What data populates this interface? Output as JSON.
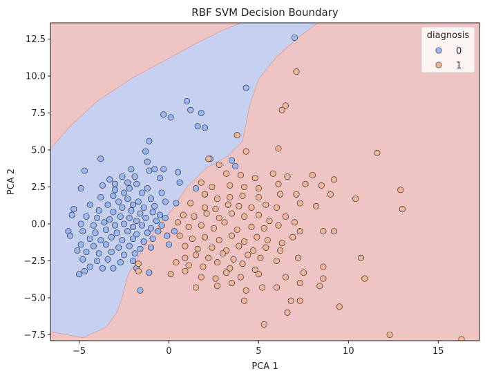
{
  "chart_data": {
    "type": "scatter",
    "title": "RBF SVM Decision Boundary",
    "xlabel": "PCA 1",
    "ylabel": "PCA 2",
    "xlim": [
      -6.6,
      17.3
    ],
    "ylim": [
      -7.9,
      13.6
    ],
    "x_ticks": [
      -5,
      0,
      5,
      10,
      15
    ],
    "x_tick_labels": [
      "−5",
      "0",
      "5",
      "10",
      "15"
    ],
    "y_ticks": [
      -7.5,
      -5.0,
      -2.5,
      0.0,
      2.5,
      5.0,
      7.5,
      10.0,
      12.5
    ],
    "y_tick_labels": [
      "−7.5",
      "−5.0",
      "−2.5",
      "0.0",
      "2.5",
      "5.0",
      "7.5",
      "10.0",
      "12.5"
    ],
    "grid": false,
    "legend": {
      "title": "diagnosis",
      "placement": "top-right",
      "entries": [
        "0",
        "1"
      ]
    },
    "colors": {
      "region_0": "#c6d1f2",
      "region_1": "#efc5c4",
      "point_0": "#9ab8f7",
      "point_1": "#f4b497",
      "point_edge": "#333333",
      "boundary": "#d99a9a"
    },
    "decision_region_0_polygon": [
      [
        -6.6,
        5.1
      ],
      [
        -5.5,
        6.6
      ],
      [
        -4.0,
        8.3
      ],
      [
        -2.0,
        9.9
      ],
      [
        0.0,
        11.2
      ],
      [
        1.5,
        12.2
      ],
      [
        3.0,
        13.1
      ],
      [
        4.0,
        13.6
      ],
      [
        8.3,
        13.6
      ],
      [
        7.2,
        12.6
      ],
      [
        6.0,
        11.3
      ],
      [
        5.0,
        9.8
      ],
      [
        4.5,
        8.0
      ],
      [
        4.1,
        5.6
      ],
      [
        3.3,
        4.6
      ],
      [
        2.1,
        3.8
      ],
      [
        1.0,
        2.5
      ],
      [
        0.2,
        1.0
      ],
      [
        -0.5,
        0.0
      ],
      [
        -1.1,
        -1.0
      ],
      [
        -1.6,
        -2.0
      ],
      [
        -2.3,
        -3.5
      ],
      [
        -2.6,
        -5.0
      ],
      [
        -2.9,
        -6.0
      ],
      [
        -3.5,
        -7.0
      ],
      [
        -4.8,
        -7.7
      ],
      [
        -6.6,
        -7.3
      ]
    ],
    "series": [
      {
        "name": "0",
        "points": [
          [
            7.0,
            12.6
          ],
          [
            4.3,
            9.2
          ],
          [
            1.0,
            8.3
          ],
          [
            1.2,
            7.7
          ],
          [
            1.8,
            7.5
          ],
          [
            -0.3,
            7.4
          ],
          [
            0.1,
            7.2
          ],
          [
            1.6,
            6.6
          ],
          [
            2.0,
            6.5
          ],
          [
            -1.1,
            5.6
          ],
          [
            -1.3,
            4.9
          ],
          [
            -3.8,
            4.4
          ],
          [
            2.3,
            4.4
          ],
          [
            3.5,
            4.3
          ],
          [
            -1.2,
            4.2
          ],
          [
            3.7,
            3.9
          ],
          [
            -0.8,
            3.7
          ],
          [
            -4.7,
            3.6
          ],
          [
            -2.1,
            3.7
          ],
          [
            -1.1,
            3.6
          ],
          [
            -0.3,
            3.7
          ],
          [
            -2.6,
            3.2
          ],
          [
            0.5,
            3.5
          ],
          [
            -0.5,
            3.1
          ],
          [
            -2.3,
            2.8
          ],
          [
            -1.8,
            2.7
          ],
          [
            0.6,
            2.8
          ],
          [
            1.5,
            2.4
          ],
          [
            -3.7,
            2.6
          ],
          [
            -2.2,
            2.4
          ],
          [
            -1.2,
            2.4
          ],
          [
            -3.0,
            2.3
          ],
          [
            -2.5,
            2.1
          ],
          [
            -1.5,
            2.1
          ],
          [
            -0.4,
            2.1
          ],
          [
            2.0,
            2.0
          ],
          [
            -4.9,
            2.4
          ],
          [
            -3.8,
            1.8
          ],
          [
            -3.1,
            1.9
          ],
          [
            -2.3,
            1.7
          ],
          [
            -1.7,
            1.5
          ],
          [
            -1.0,
            1.7
          ],
          [
            -0.2,
            1.5
          ],
          [
            0.4,
            1.4
          ],
          [
            -4.4,
            1.3
          ],
          [
            -3.4,
            1.3
          ],
          [
            -2.8,
            1.5
          ],
          [
            -2.0,
            1.3
          ],
          [
            -1.4,
            1.1
          ],
          [
            -0.8,
            1.2
          ],
          [
            -5.3,
            1.0
          ],
          [
            -3.9,
            0.9
          ],
          [
            -3.1,
            0.8
          ],
          [
            -2.6,
            1.1
          ],
          [
            -2.1,
            0.9
          ],
          [
            -1.6,
            0.7
          ],
          [
            -0.9,
            0.8
          ],
          [
            -0.5,
            0.6
          ],
          [
            -5.4,
            0.6
          ],
          [
            -4.6,
            0.5
          ],
          [
            -4.0,
            0.4
          ],
          [
            -3.3,
            0.3
          ],
          [
            -2.7,
            0.5
          ],
          [
            -2.2,
            0.4
          ],
          [
            -1.8,
            0.2
          ],
          [
            -1.3,
            0.4
          ],
          [
            -0.7,
            0.2
          ],
          [
            -0.2,
            0.4
          ],
          [
            -4.9,
            0.0
          ],
          [
            -4.2,
            -0.1
          ],
          [
            -3.6,
            0.1
          ],
          [
            -3.0,
            -0.1
          ],
          [
            -2.5,
            0.0
          ],
          [
            -2.0,
            -0.2
          ],
          [
            -1.5,
            -0.1
          ],
          [
            -1.0,
            -0.3
          ],
          [
            -0.4,
            -0.1
          ],
          [
            -5.6,
            -0.5
          ],
          [
            -4.8,
            -0.5
          ],
          [
            -4.1,
            -0.6
          ],
          [
            -3.5,
            -0.4
          ],
          [
            -2.9,
            -0.6
          ],
          [
            -2.3,
            -0.5
          ],
          [
            -1.8,
            -0.7
          ],
          [
            -1.2,
            -0.6
          ],
          [
            -0.6,
            -0.5
          ],
          [
            -5.5,
            -0.8
          ],
          [
            -4.4,
            -1.0
          ],
          [
            -3.8,
            -1.1
          ],
          [
            -3.2,
            -0.9
          ],
          [
            -2.6,
            -1.1
          ],
          [
            -2.0,
            -1.0
          ],
          [
            -1.4,
            -1.2
          ],
          [
            -0.9,
            -1.0
          ],
          [
            -4.9,
            -1.4
          ],
          [
            -4.2,
            -1.5
          ],
          [
            -3.5,
            -1.4
          ],
          [
            -2.8,
            -1.6
          ],
          [
            -2.2,
            -1.5
          ],
          [
            -1.6,
            -1.7
          ],
          [
            -1.0,
            -1.6
          ],
          [
            -5.1,
            -1.8
          ],
          [
            -4.6,
            -1.9
          ],
          [
            -3.9,
            -2.0
          ],
          [
            -3.2,
            -1.9
          ],
          [
            -2.5,
            -2.1
          ],
          [
            -1.9,
            -2.0
          ],
          [
            -4.8,
            -2.4
          ],
          [
            -4.0,
            -2.5
          ],
          [
            -3.4,
            -2.4
          ],
          [
            -2.7,
            -2.6
          ],
          [
            -2.0,
            -2.5
          ],
          [
            -4.4,
            -2.9
          ],
          [
            -3.7,
            -3.0
          ],
          [
            -3.1,
            -3.0
          ],
          [
            -5.0,
            -3.4
          ],
          [
            -4.7,
            -3.2
          ],
          [
            -1.8,
            -3.0
          ],
          [
            -1.1,
            -3.3
          ],
          [
            -1.6,
            -4.5
          ],
          [
            0.3,
            -0.5
          ],
          [
            -0.1,
            -0.8
          ],
          [
            0.0,
            -1.4
          ],
          [
            -3.3,
            3.0
          ],
          [
            -3.0,
            2.7
          ],
          [
            -1.9,
            3.2
          ]
        ]
      },
      {
        "name": "1",
        "points": [
          [
            7.1,
            10.3
          ],
          [
            6.5,
            8.0
          ],
          [
            6.3,
            7.7
          ],
          [
            3.8,
            6.0
          ],
          [
            6.1,
            5.1
          ],
          [
            11.6,
            4.8
          ],
          [
            4.3,
            4.9
          ],
          [
            2.2,
            4.4
          ],
          [
            2.8,
            4.0
          ],
          [
            3.2,
            3.4
          ],
          [
            4.0,
            3.3
          ],
          [
            4.8,
            3.1
          ],
          [
            5.8,
            3.4
          ],
          [
            6.6,
            3.2
          ],
          [
            8.0,
            3.3
          ],
          [
            9.2,
            3.0
          ],
          [
            1.8,
            2.8
          ],
          [
            2.4,
            2.5
          ],
          [
            3.4,
            2.6
          ],
          [
            4.2,
            2.5
          ],
          [
            5.0,
            2.4
          ],
          [
            6.1,
            2.7
          ],
          [
            7.6,
            2.7
          ],
          [
            8.5,
            2.6
          ],
          [
            2.0,
            2.0
          ],
          [
            2.7,
            1.7
          ],
          [
            3.4,
            1.8
          ],
          [
            4.1,
            1.9
          ],
          [
            5.0,
            1.8
          ],
          [
            6.2,
            2.0
          ],
          [
            7.1,
            2.0
          ],
          [
            9.0,
            2.0
          ],
          [
            10.4,
            1.7
          ],
          [
            12.9,
            2.3
          ],
          [
            1.2,
            1.4
          ],
          [
            2.0,
            1.1
          ],
          [
            2.6,
            1.0
          ],
          [
            3.3,
            1.3
          ],
          [
            3.9,
            1.2
          ],
          [
            4.6,
            1.1
          ],
          [
            5.4,
            1.3
          ],
          [
            6.0,
            1.1
          ],
          [
            7.3,
            1.4
          ],
          [
            8.2,
            1.2
          ],
          [
            13.0,
            1.0
          ],
          [
            0.8,
            0.6
          ],
          [
            1.4,
            0.5
          ],
          [
            2.1,
            0.7
          ],
          [
            2.8,
            0.4
          ],
          [
            3.5,
            0.7
          ],
          [
            4.2,
            0.5
          ],
          [
            5.0,
            0.6
          ],
          [
            5.6,
            0.2
          ],
          [
            6.5,
            0.5
          ],
          [
            7.0,
            0.1
          ],
          [
            0.5,
            0.1
          ],
          [
            1.1,
            -0.2
          ],
          [
            1.8,
            -0.1
          ],
          [
            2.5,
            -0.3
          ],
          [
            3.1,
            0.1
          ],
          [
            3.8,
            -0.4
          ],
          [
            4.6,
            -0.2
          ],
          [
            5.3,
            -0.3
          ],
          [
            6.1,
            -0.1
          ],
          [
            7.3,
            -0.5
          ],
          [
            8.6,
            -0.5
          ],
          [
            9.2,
            -0.5
          ],
          [
            0.6,
            -0.8
          ],
          [
            1.3,
            -1.0
          ],
          [
            2.0,
            -0.9
          ],
          [
            2.8,
            -1.1
          ],
          [
            3.5,
            -0.8
          ],
          [
            4.2,
            -1.2
          ],
          [
            4.9,
            -0.9
          ],
          [
            5.5,
            -1.1
          ],
          [
            6.3,
            -1.3
          ],
          [
            6.9,
            -0.9
          ],
          [
            0.9,
            -1.5
          ],
          [
            1.6,
            -1.7
          ],
          [
            2.4,
            -1.6
          ],
          [
            3.2,
            -1.8
          ],
          [
            3.9,
            -1.5
          ],
          [
            4.7,
            -1.8
          ],
          [
            5.4,
            -1.6
          ],
          [
            6.2,
            -1.8
          ],
          [
            0.9,
            -2.3
          ],
          [
            1.5,
            -2.1
          ],
          [
            2.2,
            -2.3
          ],
          [
            3.0,
            -2.0
          ],
          [
            3.6,
            -2.4
          ],
          [
            4.4,
            -2.1
          ],
          [
            5.1,
            -2.3
          ],
          [
            6.0,
            -2.5
          ],
          [
            7.2,
            -2.3
          ],
          [
            0.4,
            -2.6
          ],
          [
            1.1,
            -2.8
          ],
          [
            1.9,
            -2.9
          ],
          [
            2.7,
            -2.6
          ],
          [
            3.4,
            -3.0
          ],
          [
            4.1,
            -2.7
          ],
          [
            4.8,
            -3.1
          ],
          [
            8.6,
            -2.9
          ],
          [
            10.7,
            -2.3
          ],
          [
            0.1,
            -3.4
          ],
          [
            0.9,
            -3.2
          ],
          [
            1.8,
            -3.6
          ],
          [
            2.6,
            -3.7
          ],
          [
            3.2,
            -3.3
          ],
          [
            4.0,
            -3.6
          ],
          [
            5.0,
            -3.4
          ],
          [
            6.5,
            -3.6
          ],
          [
            7.5,
            -3.3
          ],
          [
            8.6,
            -3.7
          ],
          [
            10.9,
            -3.7
          ],
          [
            1.5,
            -4.3
          ],
          [
            2.7,
            -4.2
          ],
          [
            3.5,
            -4.0
          ],
          [
            4.3,
            -4.5
          ],
          [
            5.2,
            -4.3
          ],
          [
            6.0,
            -4.3
          ],
          [
            7.3,
            -4.0
          ],
          [
            8.4,
            -4.2
          ],
          [
            4.2,
            -5.2
          ],
          [
            6.8,
            -5.2
          ],
          [
            7.3,
            -5.2
          ],
          [
            9.5,
            -5.6
          ],
          [
            6.6,
            -6.0
          ],
          [
            5.3,
            -6.8
          ],
          [
            12.3,
            -7.5
          ],
          [
            16.3,
            -7.8
          ],
          [
            -1.7,
            -2.7
          ],
          [
            -1.7,
            -3.2
          ]
        ]
      }
    ]
  }
}
